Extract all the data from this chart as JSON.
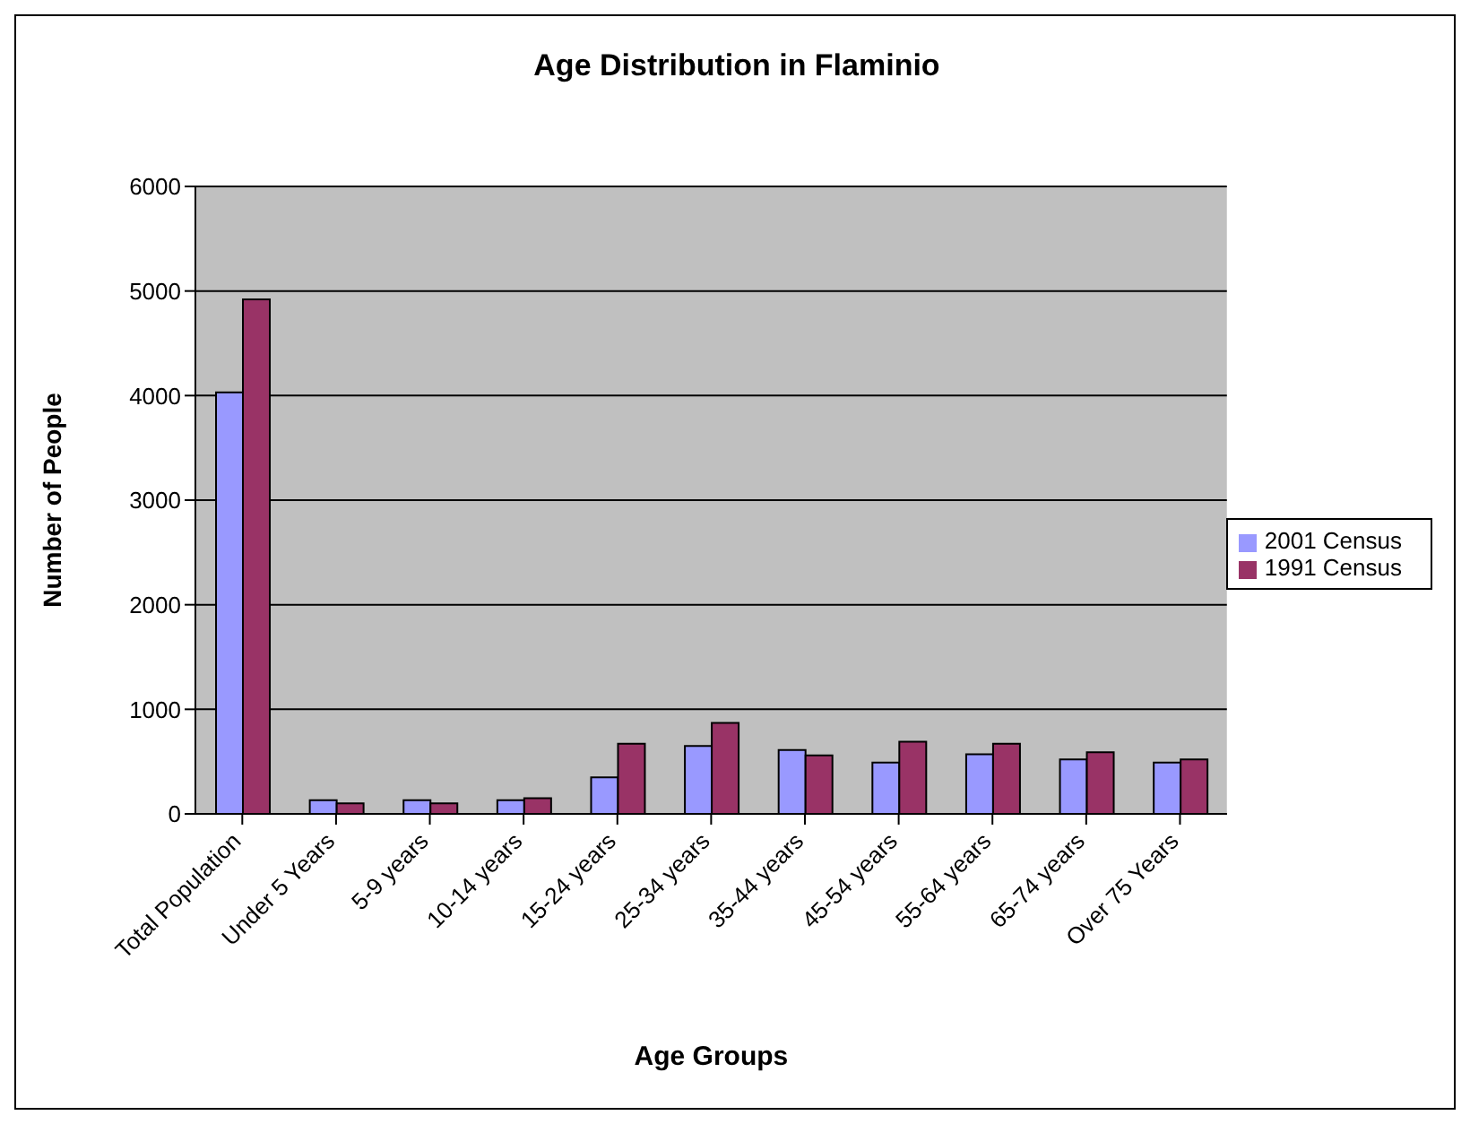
{
  "chart_data": {
    "type": "bar",
    "title": "Age Distribution in Flaminio",
    "xlabel": "Age Groups",
    "ylabel": "Number of People",
    "categories": [
      "Total Population",
      "Under 5 Years",
      "5-9 years",
      "10-14 years",
      "15-24 years",
      "25-34 years",
      "35-44 years",
      "45-54 years",
      "55-64 years",
      "65-74 years",
      "Over 75 Years"
    ],
    "series": [
      {
        "name": "2001 Census",
        "color": "#9999ff",
        "values": [
          4030,
          130,
          130,
          130,
          350,
          650,
          610,
          490,
          570,
          520,
          490
        ]
      },
      {
        "name": "1991 Census",
        "color": "#993366",
        "values": [
          4920,
          100,
          100,
          150,
          670,
          870,
          560,
          690,
          670,
          590,
          520
        ]
      }
    ],
    "ylim": [
      0,
      6000
    ],
    "yticks": [
      0,
      1000,
      2000,
      3000,
      4000,
      5000,
      6000
    ],
    "grid": "y",
    "legend": "right"
  }
}
